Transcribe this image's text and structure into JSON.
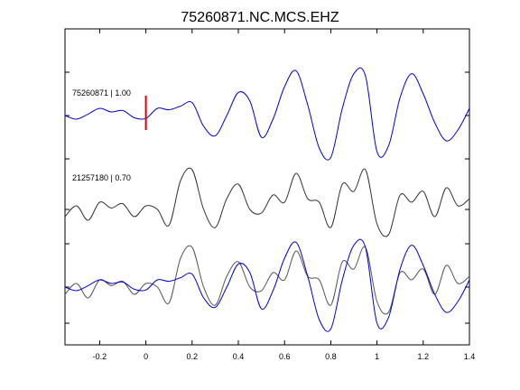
{
  "chart_data": {
    "type": "line",
    "title": "75260871.NC.MCS.EHZ",
    "xlabel": "",
    "ylabel": "",
    "xlim": [
      -0.35,
      1.4
    ],
    "xticks": [
      -0.2,
      0,
      0.2,
      0.4,
      0.6,
      0.8,
      1,
      1.2,
      1.4
    ],
    "xtick_labels": [
      "-0.2",
      "0",
      "0.2",
      "0.4",
      "0.6",
      "0.8",
      "1",
      "1.2",
      "1.4"
    ],
    "grid": false,
    "pick_marker": {
      "x": 0,
      "color": "#dd0000"
    },
    "traces": [
      {
        "label": "75260871 | 1.00",
        "color": "#0000cc",
        "offset": 0
      },
      {
        "label": "21257180 | 0.70",
        "color": "#333333",
        "offset": 1
      }
    ],
    "overlay_colors": {
      "primary": "#0000cc",
      "secondary": "#555555"
    },
    "series": [
      {
        "name": "75260871",
        "x": [
          -0.35,
          -0.3,
          -0.25,
          -0.2,
          -0.15,
          -0.1,
          -0.05,
          0,
          0.05,
          0.1,
          0.15,
          0.2,
          0.25,
          0.3,
          0.35,
          0.4,
          0.45,
          0.5,
          0.55,
          0.6,
          0.65,
          0.7,
          0.75,
          0.8,
          0.85,
          0.9,
          0.95,
          1.0,
          1.05,
          1.1,
          1.15,
          1.2,
          1.25,
          1.3,
          1.35,
          1.4
        ],
        "y": [
          0.0,
          -0.05,
          0.02,
          0.1,
          0.05,
          0.07,
          -0.03,
          -0.04,
          0.1,
          0.08,
          0.13,
          0.18,
          -0.15,
          -0.28,
          0.0,
          0.32,
          0.2,
          -0.3,
          -0.05,
          0.4,
          0.62,
          0.15,
          -0.45,
          -0.58,
          0.1,
          0.58,
          0.55,
          -0.5,
          -0.42,
          0.25,
          0.58,
          0.3,
          -0.1,
          -0.35,
          -0.2,
          0.1
        ]
      },
      {
        "name": "21257180",
        "x": [
          -0.35,
          -0.3,
          -0.25,
          -0.2,
          -0.15,
          -0.1,
          -0.05,
          0,
          0.05,
          0.1,
          0.15,
          0.2,
          0.25,
          0.3,
          0.35,
          0.4,
          0.45,
          0.5,
          0.55,
          0.6,
          0.65,
          0.7,
          0.75,
          0.8,
          0.85,
          0.9,
          0.95,
          1.0,
          1.05,
          1.1,
          1.15,
          1.2,
          1.25,
          1.3,
          1.35,
          1.4
        ],
        "y": [
          -0.1,
          0.05,
          -0.15,
          0.1,
          0.02,
          0.08,
          -0.1,
          0.05,
          0.0,
          -0.22,
          0.4,
          0.55,
          0.0,
          -0.25,
          0.15,
          0.35,
          0.0,
          -0.05,
          0.2,
          0.1,
          0.5,
          0.15,
          0.1,
          -0.25,
          0.35,
          0.25,
          0.55,
          -0.2,
          -0.35,
          0.2,
          0.1,
          0.25,
          -0.1,
          0.3,
          0.05,
          0.15
        ]
      }
    ]
  }
}
